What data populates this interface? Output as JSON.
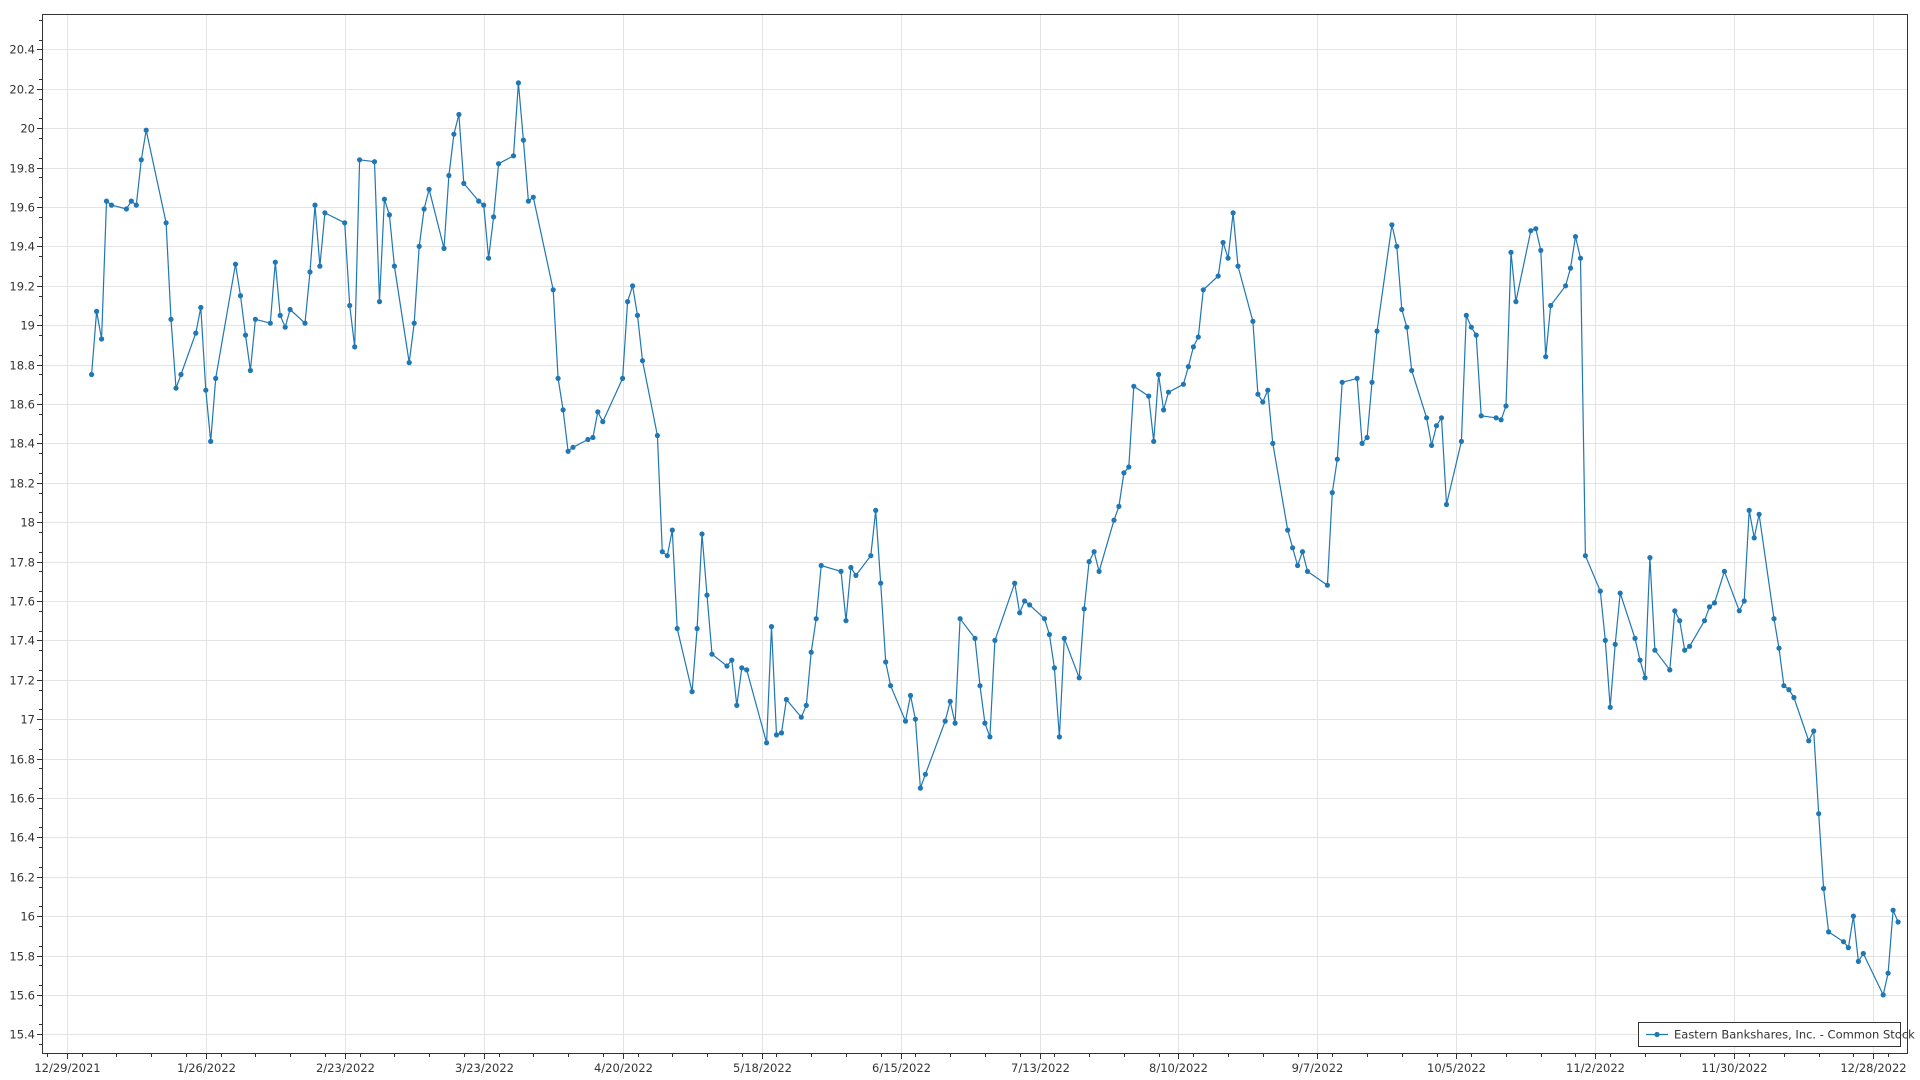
{
  "chart_data": {
    "type": "line",
    "title": "",
    "xlabel": "",
    "ylabel": "",
    "legend_position": "bottom-right",
    "grid": true,
    "ylim": [
      15.3,
      20.58
    ],
    "y_ticks": [
      "15.4",
      "15.6",
      "15.8",
      "16",
      "16.2",
      "16.4",
      "16.6",
      "16.8",
      "17",
      "17.2",
      "17.4",
      "17.6",
      "17.8",
      "18",
      "18.2",
      "18.4",
      "18.6",
      "18.8",
      "19",
      "19.2",
      "19.4",
      "19.6",
      "19.8",
      "20",
      "20.2",
      "20.4"
    ],
    "x_ticks": [
      "12/29/2021",
      "1/26/2022",
      "2/23/2022",
      "3/23/2022",
      "4/20/2022",
      "5/18/2022",
      "6/15/2022",
      "7/13/2022",
      "8/10/2022",
      "9/7/2022",
      "10/5/2022",
      "11/2/2022",
      "11/30/2022",
      "12/28/2022"
    ],
    "x_range_days": [
      -5,
      371
    ],
    "series": [
      {
        "name": "Eastern Bankshares, Inc. - Common Stock",
        "color": "#1f77b4",
        "points": [
          [
            5,
            18.75
          ],
          [
            6,
            19.07
          ],
          [
            7,
            18.93
          ],
          [
            8,
            19.63
          ],
          [
            9,
            19.61
          ],
          [
            12,
            19.59
          ],
          [
            13,
            19.63
          ],
          [
            14,
            19.61
          ],
          [
            15,
            19.84
          ],
          [
            16,
            19.99
          ],
          [
            20,
            19.52
          ],
          [
            21,
            19.03
          ],
          [
            22,
            18.68
          ],
          [
            23,
            18.75
          ],
          [
            26,
            18.96
          ],
          [
            27,
            19.09
          ],
          [
            28,
            18.67
          ],
          [
            29,
            18.41
          ],
          [
            30,
            18.73
          ],
          [
            34,
            19.31
          ],
          [
            35,
            19.15
          ],
          [
            36,
            18.95
          ],
          [
            37,
            18.77
          ],
          [
            38,
            19.03
          ],
          [
            41,
            19.01
          ],
          [
            42,
            19.32
          ],
          [
            43,
            19.05
          ],
          [
            44,
            18.99
          ],
          [
            45,
            19.08
          ],
          [
            48,
            19.01
          ],
          [
            49,
            19.27
          ],
          [
            50,
            19.61
          ],
          [
            51,
            19.3
          ],
          [
            52,
            19.57
          ],
          [
            56,
            19.52
          ],
          [
            57,
            19.1
          ],
          [
            58,
            18.89
          ],
          [
            59,
            19.84
          ],
          [
            62,
            19.83
          ],
          [
            63,
            19.12
          ],
          [
            64,
            19.64
          ],
          [
            65,
            19.56
          ],
          [
            66,
            19.3
          ],
          [
            69,
            18.81
          ],
          [
            70,
            19.01
          ],
          [
            71,
            19.4
          ],
          [
            72,
            19.59
          ],
          [
            73,
            19.69
          ],
          [
            76,
            19.39
          ],
          [
            77,
            19.76
          ],
          [
            78,
            19.97
          ],
          [
            79,
            20.07
          ],
          [
            80,
            19.72
          ],
          [
            83,
            19.63
          ],
          [
            84,
            19.61
          ],
          [
            85,
            19.34
          ],
          [
            86,
            19.55
          ],
          [
            87,
            19.82
          ],
          [
            90,
            19.86
          ],
          [
            91,
            20.23
          ],
          [
            92,
            19.94
          ],
          [
            93,
            19.63
          ],
          [
            94,
            19.65
          ],
          [
            98,
            19.18
          ],
          [
            99,
            18.73
          ],
          [
            100,
            18.57
          ],
          [
            101,
            18.36
          ],
          [
            102,
            18.38
          ],
          [
            105,
            18.42
          ],
          [
            106,
            18.43
          ],
          [
            107,
            18.56
          ],
          [
            108,
            18.51
          ],
          [
            112,
            18.73
          ],
          [
            113,
            19.12
          ],
          [
            114,
            19.2
          ],
          [
            115,
            19.05
          ],
          [
            116,
            18.82
          ],
          [
            119,
            18.44
          ],
          [
            120,
            17.85
          ],
          [
            121,
            17.83
          ],
          [
            122,
            17.96
          ],
          [
            123,
            17.46
          ],
          [
            126,
            17.14
          ],
          [
            127,
            17.46
          ],
          [
            128,
            17.94
          ],
          [
            129,
            17.63
          ],
          [
            130,
            17.33
          ],
          [
            133,
            17.27
          ],
          [
            134,
            17.3
          ],
          [
            135,
            17.07
          ],
          [
            136,
            17.26
          ],
          [
            137,
            17.25
          ],
          [
            141,
            16.88
          ],
          [
            142,
            17.47
          ],
          [
            143,
            16.92
          ],
          [
            144,
            16.93
          ],
          [
            145,
            17.1
          ],
          [
            148,
            17.01
          ],
          [
            149,
            17.07
          ],
          [
            150,
            17.34
          ],
          [
            151,
            17.51
          ],
          [
            152,
            17.78
          ],
          [
            156,
            17.75
          ],
          [
            157,
            17.5
          ],
          [
            158,
            17.77
          ],
          [
            159,
            17.73
          ],
          [
            162,
            17.83
          ],
          [
            163,
            18.06
          ],
          [
            164,
            17.69
          ],
          [
            165,
            17.29
          ],
          [
            166,
            17.17
          ],
          [
            169,
            16.99
          ],
          [
            170,
            17.12
          ],
          [
            171,
            17.0
          ],
          [
            172,
            16.65
          ],
          [
            173,
            16.72
          ],
          [
            177,
            16.99
          ],
          [
            178,
            17.09
          ],
          [
            179,
            16.98
          ],
          [
            180,
            17.51
          ],
          [
            183,
            17.41
          ],
          [
            184,
            17.17
          ],
          [
            185,
            16.98
          ],
          [
            186,
            16.91
          ],
          [
            187,
            17.4
          ],
          [
            191,
            17.69
          ],
          [
            192,
            17.54
          ],
          [
            193,
            17.6
          ],
          [
            194,
            17.58
          ],
          [
            197,
            17.51
          ],
          [
            198,
            17.43
          ],
          [
            199,
            17.26
          ],
          [
            200,
            16.91
          ],
          [
            201,
            17.41
          ],
          [
            204,
            17.21
          ],
          [
            205,
            17.56
          ],
          [
            206,
            17.8
          ],
          [
            207,
            17.85
          ],
          [
            208,
            17.75
          ],
          [
            211,
            18.01
          ],
          [
            212,
            18.08
          ],
          [
            213,
            18.25
          ],
          [
            214,
            18.28
          ],
          [
            215,
            18.69
          ],
          [
            218,
            18.64
          ],
          [
            219,
            18.41
          ],
          [
            220,
            18.75
          ],
          [
            221,
            18.57
          ],
          [
            222,
            18.66
          ],
          [
            225,
            18.7
          ],
          [
            226,
            18.79
          ],
          [
            227,
            18.89
          ],
          [
            228,
            18.94
          ],
          [
            229,
            19.18
          ],
          [
            232,
            19.25
          ],
          [
            233,
            19.42
          ],
          [
            234,
            19.34
          ],
          [
            235,
            19.57
          ],
          [
            236,
            19.3
          ],
          [
            239,
            19.02
          ],
          [
            240,
            18.65
          ],
          [
            241,
            18.61
          ],
          [
            242,
            18.67
          ],
          [
            243,
            18.4
          ],
          [
            246,
            17.96
          ],
          [
            247,
            17.87
          ],
          [
            248,
            17.78
          ],
          [
            249,
            17.85
          ],
          [
            250,
            17.75
          ],
          [
            254,
            17.68
          ],
          [
            255,
            18.15
          ],
          [
            256,
            18.32
          ],
          [
            257,
            18.71
          ],
          [
            260,
            18.73
          ],
          [
            261,
            18.4
          ],
          [
            262,
            18.43
          ],
          [
            263,
            18.71
          ],
          [
            264,
            18.97
          ],
          [
            267,
            19.51
          ],
          [
            268,
            19.4
          ],
          [
            269,
            19.08
          ],
          [
            270,
            18.99
          ],
          [
            271,
            18.77
          ],
          [
            274,
            18.53
          ],
          [
            275,
            18.39
          ],
          [
            276,
            18.49
          ],
          [
            277,
            18.53
          ],
          [
            278,
            18.09
          ],
          [
            281,
            18.41
          ],
          [
            282,
            19.05
          ],
          [
            283,
            18.99
          ],
          [
            284,
            18.95
          ],
          [
            285,
            18.54
          ],
          [
            288,
            18.53
          ],
          [
            289,
            18.52
          ],
          [
            290,
            18.59
          ],
          [
            291,
            19.37
          ],
          [
            292,
            19.12
          ],
          [
            295,
            19.48
          ],
          [
            296,
            19.49
          ],
          [
            297,
            19.38
          ],
          [
            298,
            18.84
          ],
          [
            299,
            19.1
          ],
          [
            302,
            19.2
          ],
          [
            303,
            19.29
          ],
          [
            304,
            19.45
          ],
          [
            305,
            19.34
          ],
          [
            306,
            17.83
          ],
          [
            309,
            17.65
          ],
          [
            310,
            17.4
          ],
          [
            311,
            17.06
          ],
          [
            312,
            17.38
          ],
          [
            313,
            17.64
          ],
          [
            316,
            17.41
          ],
          [
            317,
            17.3
          ],
          [
            318,
            17.21
          ],
          [
            319,
            17.82
          ],
          [
            320,
            17.35
          ],
          [
            323,
            17.25
          ],
          [
            324,
            17.55
          ],
          [
            325,
            17.5
          ],
          [
            326,
            17.35
          ],
          [
            327,
            17.37
          ],
          [
            330,
            17.5
          ],
          [
            331,
            17.57
          ],
          [
            332,
            17.59
          ],
          [
            334,
            17.75
          ],
          [
            337,
            17.55
          ],
          [
            338,
            17.6
          ],
          [
            339,
            18.06
          ],
          [
            340,
            17.92
          ],
          [
            341,
            18.04
          ],
          [
            344,
            17.51
          ],
          [
            345,
            17.36
          ],
          [
            346,
            17.17
          ],
          [
            347,
            17.15
          ],
          [
            348,
            17.11
          ],
          [
            351,
            16.89
          ],
          [
            352,
            16.94
          ],
          [
            353,
            16.52
          ],
          [
            354,
            16.14
          ],
          [
            355,
            15.92
          ],
          [
            358,
            15.87
          ],
          [
            359,
            15.84
          ],
          [
            360,
            16.0
          ],
          [
            361,
            15.77
          ],
          [
            362,
            15.81
          ],
          [
            366,
            15.6
          ],
          [
            367,
            15.71
          ],
          [
            368,
            16.03
          ],
          [
            369,
            15.97
          ]
        ]
      }
    ]
  }
}
